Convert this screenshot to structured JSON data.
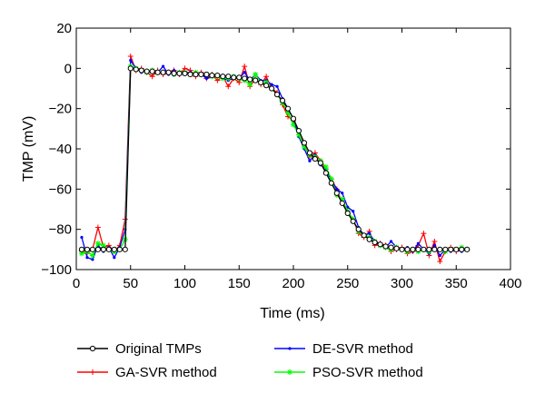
{
  "chart_data": {
    "type": "line",
    "xlabel": "Time (ms)",
    "ylabel": "TMP (mV)",
    "xlim": [
      0,
      400
    ],
    "ylim": [
      -100,
      20
    ],
    "xticks": [
      "0",
      "50",
      "100",
      "150",
      "200",
      "250",
      "300",
      "350",
      "400"
    ],
    "yticks": [
      "20",
      "0",
      "−20",
      "−40",
      "−60",
      "−80",
      "−100"
    ],
    "grid": false,
    "legend_position": "below",
    "series": [
      {
        "name": "Original TMPs",
        "color": "#000000",
        "marker": "circle",
        "x": [
          5,
          10,
          15,
          20,
          25,
          30,
          35,
          40,
          45,
          50,
          55,
          60,
          65,
          70,
          75,
          80,
          85,
          90,
          95,
          100,
          105,
          110,
          115,
          120,
          125,
          130,
          135,
          140,
          145,
          150,
          155,
          160,
          165,
          170,
          175,
          180,
          185,
          190,
          195,
          200,
          205,
          210,
          215,
          220,
          225,
          230,
          235,
          240,
          245,
          250,
          255,
          260,
          265,
          270,
          275,
          280,
          285,
          290,
          295,
          300,
          305,
          310,
          315,
          320,
          325,
          330,
          335,
          340,
          345,
          350,
          355,
          360
        ],
        "y": [
          -90,
          -90,
          -90,
          -90,
          -90,
          -90,
          -90,
          -90,
          -90,
          0,
          -0.5,
          -1,
          -1.5,
          -1.5,
          -2,
          -2,
          -2,
          -2.5,
          -2.5,
          -2.5,
          -3,
          -3,
          -3,
          -3,
          -3.5,
          -3.5,
          -4,
          -4,
          -4.5,
          -4.5,
          -5,
          -5.5,
          -6,
          -7,
          -8.5,
          -10,
          -13,
          -16,
          -20,
          -25,
          -31,
          -37,
          -42,
          -45,
          -47,
          -52,
          -57,
          -62,
          -67,
          -72,
          -76,
          -80,
          -83,
          -85,
          -86.5,
          -87.5,
          -88.5,
          -89,
          -89.5,
          -90,
          -90,
          -90,
          -90,
          -90,
          -90,
          -90,
          -90,
          -90,
          -90,
          -90,
          -90,
          -90
        ]
      },
      {
        "name": "GA-SVR method",
        "color": "#ff0000",
        "marker": "plus",
        "x": [
          5,
          10,
          15,
          20,
          25,
          30,
          35,
          40,
          45,
          50,
          55,
          60,
          65,
          70,
          75,
          80,
          85,
          90,
          95,
          100,
          105,
          110,
          115,
          120,
          125,
          130,
          135,
          140,
          145,
          150,
          155,
          160,
          165,
          170,
          175,
          180,
          185,
          190,
          195,
          200,
          205,
          210,
          215,
          220,
          225,
          230,
          235,
          240,
          245,
          250,
          255,
          260,
          265,
          270,
          275,
          280,
          285,
          290,
          295,
          300,
          305,
          310,
          315,
          320,
          325,
          330,
          335,
          340,
          345,
          350,
          355,
          360
        ],
        "y": [
          -91,
          -92,
          -90,
          -79,
          -89,
          -88,
          -91,
          -88,
          -75,
          6,
          -1,
          0,
          -2,
          -4,
          -1,
          -3,
          -2,
          -1,
          -3,
          0,
          -1,
          -4,
          -2,
          -5,
          -3,
          -6,
          -4,
          -9,
          -5,
          -7,
          1,
          -9,
          -5,
          -8,
          -4,
          -10,
          -12,
          -18,
          -24,
          -26,
          -33,
          -38,
          -44,
          -42,
          -46,
          -50,
          -55,
          -60,
          -67,
          -71,
          -75,
          -82,
          -84,
          -81,
          -88,
          -87,
          -88,
          -91,
          -90,
          -89,
          -92,
          -91,
          -88,
          -82,
          -93,
          -86,
          -96,
          -91,
          -89,
          -91,
          -90,
          -90
        ]
      },
      {
        "name": "DE-SVR method",
        "color": "#0000ff",
        "marker": "dot",
        "x": [
          5,
          10,
          15,
          20,
          25,
          30,
          35,
          40,
          45,
          50,
          55,
          60,
          65,
          70,
          75,
          80,
          85,
          90,
          95,
          100,
          105,
          110,
          115,
          120,
          125,
          130,
          135,
          140,
          145,
          150,
          155,
          160,
          165,
          170,
          175,
          180,
          185,
          190,
          195,
          200,
          205,
          210,
          215,
          220,
          225,
          230,
          235,
          240,
          245,
          250,
          255,
          260,
          265,
          270,
          275,
          280,
          285,
          290,
          295,
          300,
          305,
          310,
          315,
          320,
          325,
          330,
          335,
          340,
          345,
          350,
          355,
          360
        ],
        "y": [
          -84,
          -94,
          -95,
          -88,
          -91,
          -89,
          -94,
          -89,
          -80,
          4,
          0,
          -2,
          -1,
          -2,
          -2,
          1,
          -3,
          -1,
          -3,
          -2,
          -2,
          -3,
          -3,
          -5,
          -4,
          -4,
          -5,
          -6,
          -5,
          -5,
          -2,
          -6,
          -3,
          -6,
          -6,
          -8,
          -9,
          -15,
          -20,
          -25,
          -34,
          -40,
          -46,
          -43,
          -48,
          -50,
          -56,
          -60,
          -62,
          -69,
          -71,
          -79,
          -83,
          -82,
          -86,
          -87,
          -89,
          -86,
          -89,
          -90,
          -89,
          -91,
          -87,
          -90,
          -92,
          -88,
          -93,
          -90,
          -91,
          -90,
          -91,
          -90
        ]
      },
      {
        "name": "PSO-SVR method",
        "color": "#00ff00",
        "marker": "star",
        "x": [
          5,
          10,
          15,
          20,
          25,
          30,
          35,
          40,
          45,
          50,
          55,
          60,
          65,
          70,
          75,
          80,
          85,
          90,
          95,
          100,
          105,
          110,
          115,
          120,
          125,
          130,
          135,
          140,
          145,
          150,
          155,
          160,
          165,
          170,
          175,
          180,
          185,
          190,
          195,
          200,
          205,
          210,
          215,
          220,
          225,
          230,
          235,
          240,
          245,
          250,
          255,
          260,
          265,
          270,
          275,
          280,
          285,
          290,
          295,
          300,
          305,
          310,
          315,
          320,
          325,
          330,
          335,
          340,
          345,
          350,
          355,
          360
        ],
        "y": [
          -92,
          -91,
          -93,
          -87,
          -88,
          -90,
          -91,
          -90,
          -85,
          1,
          0,
          -1,
          -2,
          -1,
          -2,
          -2,
          -2,
          -3,
          -2,
          -2,
          -3,
          -2,
          -3,
          -3,
          -4,
          -4,
          -5,
          -5,
          -4,
          -5,
          -6,
          -8,
          -3,
          -7,
          -7,
          -10,
          -13,
          -17,
          -22,
          -28,
          -33,
          -39,
          -43,
          -44,
          -46,
          -49,
          -55,
          -63,
          -65,
          -71,
          -75,
          -81,
          -83,
          -84,
          -86,
          -88,
          -89,
          -90,
          -89,
          -90,
          -91,
          -90,
          -91,
          -90,
          -91,
          -90,
          -90,
          -91,
          -90,
          -90,
          -89,
          -90
        ]
      }
    ]
  }
}
